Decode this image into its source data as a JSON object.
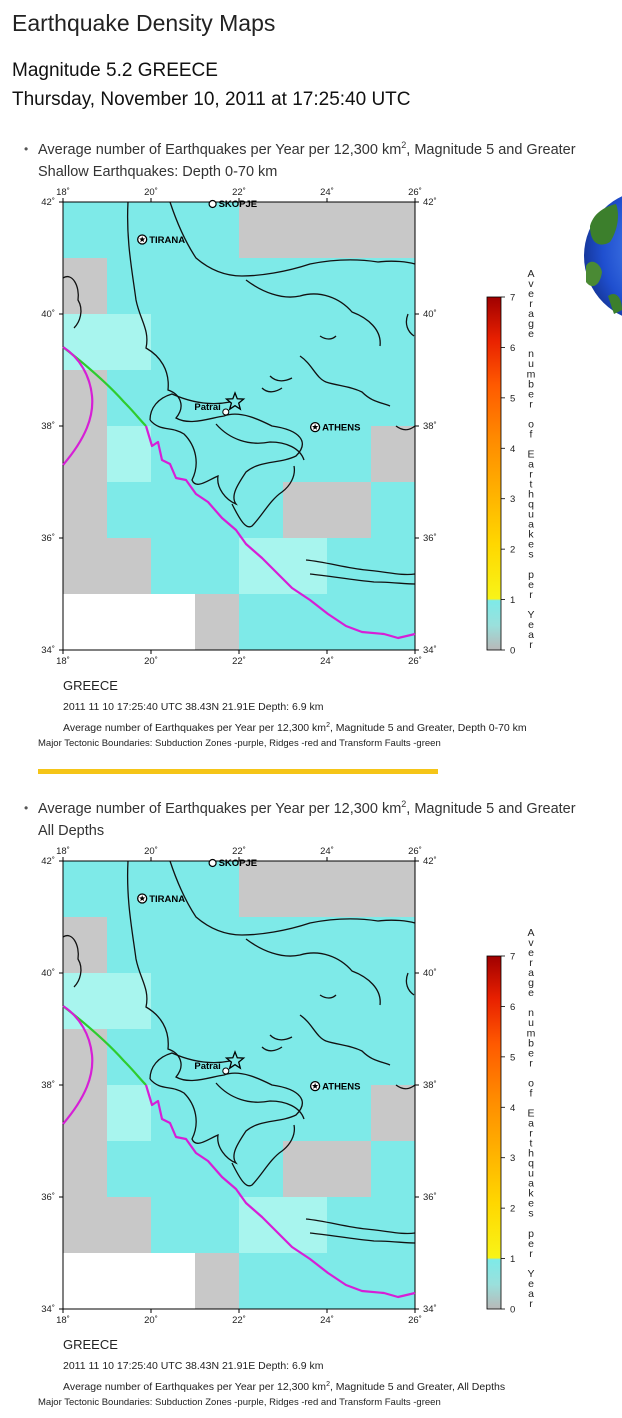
{
  "page_title": "Earthquake Density Maps",
  "event": {
    "line1": "Magnitude 5.2 GREECE",
    "line2": "Thursday, November 10, 2011 at 17:25:40 UTC"
  },
  "sections": [
    {
      "heading_main": "Average number of Earthquakes per Year per 12,300 km",
      "heading_sup": "2",
      "heading_rest": ", Magnitude 5 and Greater",
      "heading_sub": "Shallow Earthquakes: Depth 0-70 km",
      "map": {
        "region": "GREECE",
        "event_info": "2011 11 10 17:25:40 UTC 38.43N 21.91E Depth: 6.9 km",
        "caption_main": "Average number of Earthquakes per Year per 12,300 km",
        "caption_sup": "2",
        "caption_rest": ", Magnitude 5 and Greater, Depth 0-70 km",
        "tectonic_note": "Major Tectonic Boundaries: Subduction Zones -purple, Ridges -red and Transform Faults -green"
      }
    },
    {
      "heading_main": "Average number of Earthquakes per Year per 12,300 km",
      "heading_sup": "2",
      "heading_rest": ", Magnitude 5 and Greater",
      "heading_sub": "All Depths",
      "map": {
        "region": "GREECE",
        "event_info": "2011 11 10 17:25:40 UTC 38.43N 21.91E Depth: 6.9 km",
        "caption_main": "Average number of Earthquakes per Year per 12,300 km",
        "caption_sup": "2",
        "caption_rest": ", Magnitude 5 and Greater, All Depths",
        "tectonic_note": "Major Tectonic Boundaries: Subduction Zones -purple, Ridges -red and Transform Faults -green"
      }
    }
  ],
  "axes": {
    "lon_ticks": [
      "18˚",
      "20˚",
      "22˚",
      "24˚",
      "26˚"
    ],
    "lat_ticks": [
      "42˚",
      "40˚",
      "38˚",
      "36˚",
      "34˚"
    ]
  },
  "cities": [
    {
      "name": "SKOPJE"
    },
    {
      "name": "TIRANA"
    },
    {
      "name": "Patrai"
    },
    {
      "name": "ATHENS"
    }
  ],
  "colorbar": {
    "ticks": [
      "7",
      "6",
      "5",
      "4",
      "3",
      "2",
      "1",
      "0"
    ],
    "title_letters": [
      "A",
      "v",
      "e",
      "r",
      "a",
      "g",
      "e",
      "",
      "n",
      "u",
      "m",
      "b",
      "e",
      "r",
      "",
      "o",
      "f",
      "",
      "E",
      "a",
      "r",
      "t",
      "h",
      "q",
      "u",
      "a",
      "k",
      "e",
      "s",
      "",
      "p",
      "e",
      "r",
      "",
      "Y",
      "e",
      "a",
      "r"
    ]
  },
  "colors": {
    "subduction": "#d61fd6",
    "transform": "#2ecc2e",
    "divider": "#f5c518",
    "density_low": "#a8f5ee",
    "density_mid": "#7eeae8",
    "density_gray": "#c8c8c8"
  }
}
